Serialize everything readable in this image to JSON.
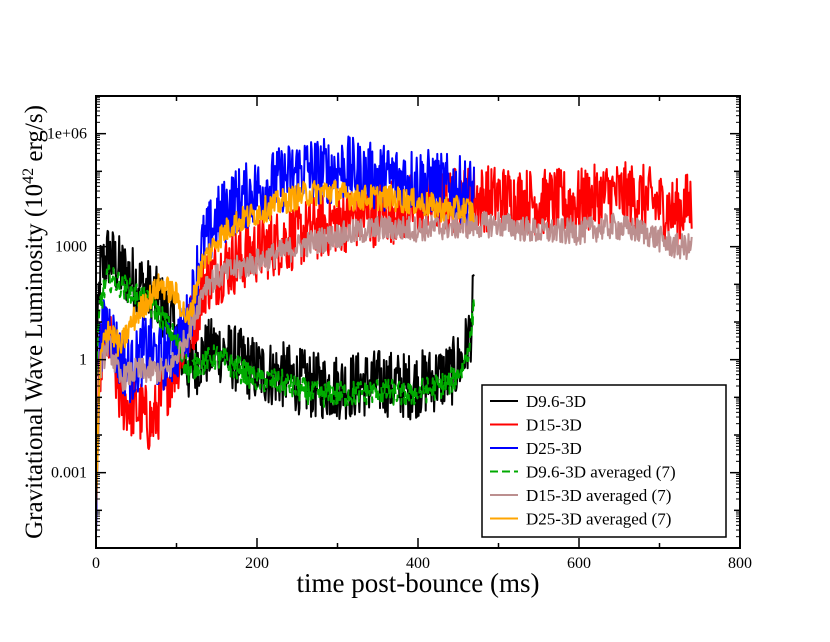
{
  "chart_data": {
    "type": "line",
    "title": "",
    "xlabel": "time post-bounce (ms)",
    "ylabel_base": "Gravitational Wave Luminosity (10",
    "ylabel_exp": "42",
    "ylabel_tail": " erg/s)",
    "xlim": [
      0,
      800
    ],
    "ylim": [
      1e-05,
      10000000
    ],
    "yscale": "log",
    "x_ticks": [
      0,
      200,
      400,
      600,
      800
    ],
    "x_tick_labels": [
      "0",
      "200",
      "400",
      "600",
      "800"
    ],
    "y_ticks": [
      0.001,
      1,
      1000,
      1000000
    ],
    "y_tick_labels": [
      "0.001",
      "1",
      "1000",
      "1e+06"
    ],
    "legend_position": "bottom-right",
    "series": [
      {
        "name": "D9.6-3D",
        "color": "#000000",
        "dash": "solid",
        "points": [
          [
            0,
            0.3
          ],
          [
            5,
            200
          ],
          [
            15,
            600
          ],
          [
            30,
            250
          ],
          [
            45,
            150
          ],
          [
            60,
            80
          ],
          [
            80,
            30
          ],
          [
            100,
            5
          ],
          [
            115,
            0.5
          ],
          [
            130,
            1.2
          ],
          [
            150,
            2
          ],
          [
            175,
            1
          ],
          [
            200,
            0.5
          ],
          [
            230,
            0.4
          ],
          [
            270,
            0.2
          ],
          [
            310,
            0.2
          ],
          [
            350,
            0.25
          ],
          [
            390,
            0.2
          ],
          [
            420,
            0.3
          ],
          [
            440,
            0.4
          ],
          [
            455,
            1
          ],
          [
            465,
            5
          ],
          [
            470,
            60
          ]
        ]
      },
      {
        "name": "D15-3D",
        "color": "#ff0000",
        "dash": "solid",
        "points": [
          [
            0,
            0.0001
          ],
          [
            5,
            1
          ],
          [
            15,
            5
          ],
          [
            30,
            0.1
          ],
          [
            50,
            0.05
          ],
          [
            70,
            0.02
          ],
          [
            90,
            0.3
          ],
          [
            110,
            3
          ],
          [
            125,
            20
          ],
          [
            135,
            120
          ],
          [
            160,
            300
          ],
          [
            200,
            800
          ],
          [
            250,
            2000
          ],
          [
            300,
            5000
          ],
          [
            350,
            8000
          ],
          [
            400,
            12000
          ],
          [
            450,
            18000
          ],
          [
            500,
            20000
          ],
          [
            550,
            15000
          ],
          [
            600,
            15000
          ],
          [
            640,
            25000
          ],
          [
            680,
            20000
          ],
          [
            720,
            8000
          ],
          [
            740,
            15000
          ]
        ]
      },
      {
        "name": "D25-3D",
        "color": "#0000ff",
        "dash": "solid",
        "points": [
          [
            0,
            0.0001
          ],
          [
            5,
            3
          ],
          [
            15,
            10
          ],
          [
            30,
            1
          ],
          [
            45,
            0.5
          ],
          [
            60,
            2
          ],
          [
            80,
            1
          ],
          [
            100,
            2
          ],
          [
            115,
            10
          ],
          [
            130,
            800
          ],
          [
            150,
            5000
          ],
          [
            170,
            15000
          ],
          [
            200,
            30000
          ],
          [
            230,
            60000
          ],
          [
            260,
            120000
          ],
          [
            280,
            100000
          ],
          [
            310,
            120000
          ],
          [
            330,
            80000
          ],
          [
            360,
            70000
          ],
          [
            400,
            60000
          ],
          [
            430,
            40000
          ],
          [
            460,
            30000
          ],
          [
            470,
            30000
          ]
        ]
      },
      {
        "name": "D9.6-3D averaged (7)",
        "color": "#00aa00",
        "dash": "dashed",
        "points": [
          [
            0,
            0.3
          ],
          [
            5,
            30
          ],
          [
            15,
            150
          ],
          [
            30,
            100
          ],
          [
            45,
            60
          ],
          [
            60,
            40
          ],
          [
            80,
            15
          ],
          [
            100,
            3
          ],
          [
            115,
            0.5
          ],
          [
            130,
            0.8
          ],
          [
            150,
            1.2
          ],
          [
            175,
            0.6
          ],
          [
            200,
            0.3
          ],
          [
            230,
            0.25
          ],
          [
            270,
            0.12
          ],
          [
            310,
            0.12
          ],
          [
            350,
            0.15
          ],
          [
            390,
            0.12
          ],
          [
            420,
            0.18
          ],
          [
            440,
            0.25
          ],
          [
            455,
            0.6
          ],
          [
            465,
            3
          ],
          [
            470,
            40
          ]
        ]
      },
      {
        "name": "D15-3D averaged (7)",
        "color": "#bc8f8f",
        "dash": "solid",
        "points": [
          [
            0,
            0.0001
          ],
          [
            5,
            0.5
          ],
          [
            15,
            3
          ],
          [
            30,
            0.3
          ],
          [
            50,
            0.5
          ],
          [
            70,
            0.5
          ],
          [
            90,
            0.5
          ],
          [
            110,
            3
          ],
          [
            125,
            20
          ],
          [
            135,
            100
          ],
          [
            160,
            200
          ],
          [
            200,
            400
          ],
          [
            250,
            1000
          ],
          [
            300,
            2000
          ],
          [
            350,
            3000
          ],
          [
            400,
            3000
          ],
          [
            450,
            3500
          ],
          [
            500,
            4000
          ],
          [
            550,
            2500
          ],
          [
            600,
            2500
          ],
          [
            640,
            3500
          ],
          [
            680,
            2500
          ],
          [
            720,
            1000
          ],
          [
            740,
            1000
          ]
        ]
      },
      {
        "name": "D25-3D averaged (7)",
        "color": "#ffa500",
        "dash": "solid",
        "points": [
          [
            0,
            0.0001
          ],
          [
            5,
            1
          ],
          [
            15,
            8
          ],
          [
            30,
            2
          ],
          [
            45,
            10
          ],
          [
            60,
            30
          ],
          [
            80,
            100
          ],
          [
            100,
            50
          ],
          [
            115,
            10
          ],
          [
            130,
            300
          ],
          [
            150,
            1500
          ],
          [
            170,
            4000
          ],
          [
            200,
            8000
          ],
          [
            230,
            15000
          ],
          [
            260,
            25000
          ],
          [
            290,
            30000
          ],
          [
            320,
            20000
          ],
          [
            360,
            20000
          ],
          [
            400,
            15000
          ],
          [
            430,
            10000
          ],
          [
            460,
            10000
          ],
          [
            470,
            8000
          ]
        ]
      }
    ]
  }
}
